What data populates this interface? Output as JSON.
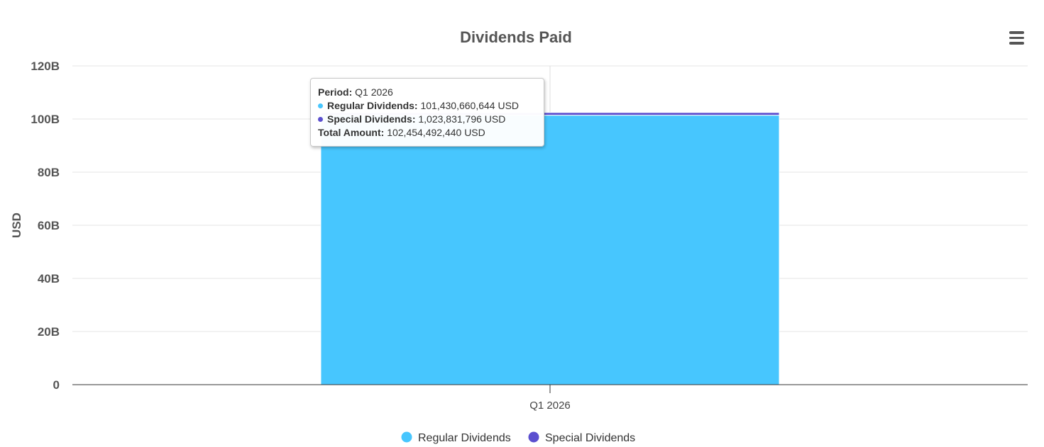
{
  "menu": {
    "icon": "hamburger-menu-icon"
  },
  "colors": {
    "regular": "#47C6FE",
    "special": "#5B4FCF",
    "grid": "#e6e6e6",
    "axis": "#333333"
  },
  "chart_data": {
    "type": "bar",
    "stacked": true,
    "title": "Dividends Paid",
    "xlabel": "",
    "ylabel": "USD",
    "ylim": [
      0,
      120000000000
    ],
    "yticks": [
      {
        "value": 0,
        "label": "0"
      },
      {
        "value": 20000000000,
        "label": "20B"
      },
      {
        "value": 40000000000,
        "label": "40B"
      },
      {
        "value": 60000000000,
        "label": "60B"
      },
      {
        "value": 80000000000,
        "label": "80B"
      },
      {
        "value": 100000000000,
        "label": "100B"
      },
      {
        "value": 120000000000,
        "label": "120B"
      }
    ],
    "categories": [
      "Q1 2026"
    ],
    "series": [
      {
        "name": "Regular Dividends",
        "values": [
          101430660644
        ],
        "color": "#47C6FE"
      },
      {
        "name": "Special Dividends",
        "values": [
          1023831796
        ],
        "color": "#5B4FCF"
      }
    ],
    "grid": true,
    "legend": "bottom-center"
  },
  "tooltip": {
    "period_label": "Period:",
    "period_value": "Q1 2026",
    "regular_label": "Regular Dividends:",
    "regular_value": "101,430,660,644 USD",
    "special_label": "Special Dividends:",
    "special_value": "1,023,831,796 USD",
    "total_label": "Total Amount:",
    "total_value": "102,454,492,440 USD"
  }
}
